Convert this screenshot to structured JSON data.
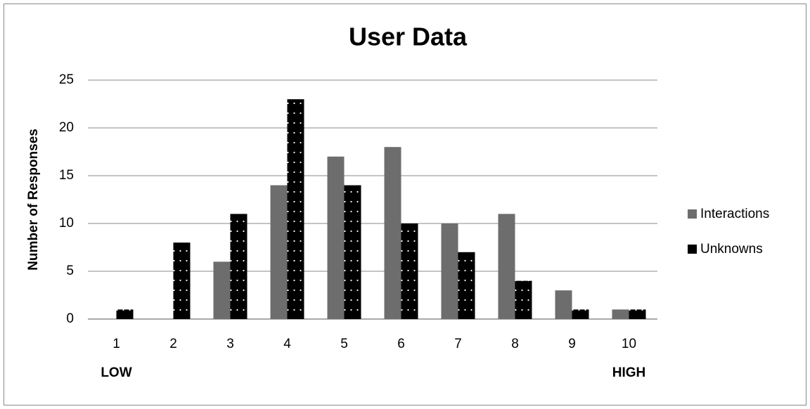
{
  "chart_data": {
    "type": "bar",
    "title": "User Data",
    "y_label": "Number of Responses",
    "categories": [
      "1",
      "2",
      "3",
      "4",
      "5",
      "6",
      "7",
      "8",
      "9",
      "10"
    ],
    "series": [
      {
        "name": "Interactions",
        "color": "#6d6d6d",
        "values": [
          0,
          0,
          6,
          14,
          17,
          18,
          10,
          11,
          3,
          1
        ]
      },
      {
        "name": "Unknowns",
        "color": "#000000",
        "values": [
          1,
          8,
          11,
          23,
          14,
          10,
          7,
          4,
          1,
          1
        ]
      }
    ],
    "annotations": [
      "LOW",
      "HIGH"
    ],
    "ylim": [
      0,
      25
    ],
    "yticks": [
      0,
      5,
      10,
      15,
      20,
      25
    ],
    "grid": true,
    "legend": "right"
  }
}
